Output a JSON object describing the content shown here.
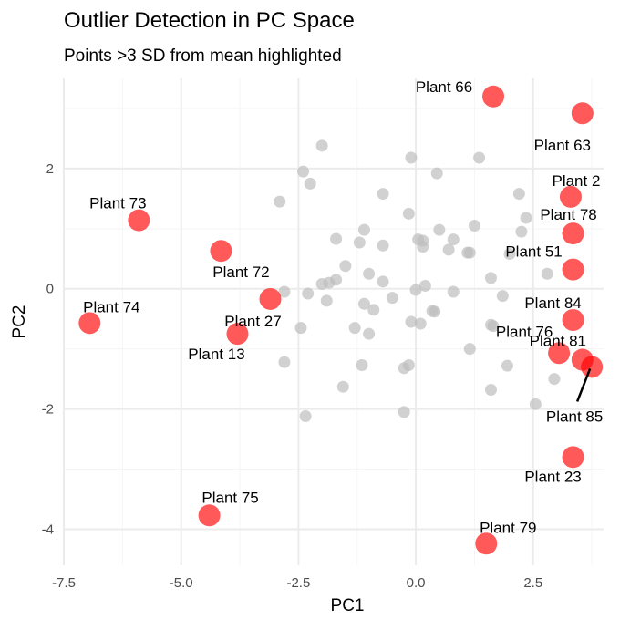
{
  "chart_data": {
    "type": "scatter",
    "title": "Outlier Detection in PC Space",
    "subtitle": "Points >3 SD from mean highlighted",
    "xlabel": "PC1",
    "ylabel": "PC2",
    "xlim": [
      -7.5,
      4.0
    ],
    "ylim": [
      -4.6,
      3.5
    ],
    "x_ticks": [
      -7.5,
      -5.0,
      -2.5,
      0.0,
      2.5
    ],
    "x_tick_labels": [
      "-7.5",
      "-5.0",
      "-2.5",
      "0.0",
      "2.5"
    ],
    "y_ticks": [
      -4,
      -2,
      0,
      2
    ],
    "y_tick_labels": [
      "-4",
      "-2",
      "0",
      "2"
    ],
    "grid": true,
    "legend": "none",
    "colors": {
      "normal": "#bdbdbd",
      "outlier": "#ff0000",
      "major_grid": "#ebebeb",
      "minor_grid": "#f5f5f5"
    },
    "normal_points": [
      [
        -2.0,
        2.38
      ],
      [
        -0.1,
        2.18
      ],
      [
        1.35,
        2.18
      ],
      [
        -2.4,
        1.95
      ],
      [
        0.45,
        1.92
      ],
      [
        -2.25,
        1.75
      ],
      [
        -2.9,
        1.45
      ],
      [
        -0.7,
        1.58
      ],
      [
        2.2,
        1.58
      ],
      [
        -0.15,
        1.25
      ],
      [
        2.35,
        1.18
      ],
      [
        1.25,
        1.05
      ],
      [
        2.25,
        0.95
      ],
      [
        -1.1,
        0.98
      ],
      [
        0.5,
        0.98
      ],
      [
        -1.7,
        0.83
      ],
      [
        0.05,
        0.82
      ],
      [
        0.15,
        0.8
      ],
      [
        -1.2,
        0.77
      ],
      [
        0.8,
        0.82
      ],
      [
        -0.7,
        0.72
      ],
      [
        0.15,
        0.7
      ],
      [
        0.7,
        0.65
      ],
      [
        1.1,
        0.6
      ],
      [
        1.15,
        0.6
      ],
      [
        2.0,
        0.58
      ],
      [
        -1.5,
        0.38
      ],
      [
        -1.0,
        0.25
      ],
      [
        2.8,
        0.25
      ],
      [
        -1.7,
        0.15
      ],
      [
        -1.85,
        0.1
      ],
      [
        -2.0,
        0.08
      ],
      [
        -0.7,
        0.12
      ],
      [
        1.6,
        0.18
      ],
      [
        -2.8,
        -0.05
      ],
      [
        -2.3,
        -0.08
      ],
      [
        0.0,
        -0.02
      ],
      [
        0.8,
        -0.05
      ],
      [
        0.2,
        0.05
      ],
      [
        -1.9,
        -0.2
      ],
      [
        -0.5,
        -0.15
      ],
      [
        1.85,
        -0.12
      ],
      [
        -1.1,
        -0.25
      ],
      [
        -0.9,
        -0.35
      ],
      [
        0.35,
        -0.37
      ],
      [
        0.4,
        -0.38
      ],
      [
        1.6,
        -0.6
      ],
      [
        1.65,
        -0.62
      ],
      [
        -0.1,
        -0.55
      ],
      [
        0.1,
        -0.58
      ],
      [
        -1.3,
        -0.65
      ],
      [
        -2.45,
        -0.65
      ],
      [
        -1.0,
        -0.75
      ],
      [
        1.15,
        -1.0
      ],
      [
        -2.8,
        -1.22
      ],
      [
        -1.15,
        -1.27
      ],
      [
        -0.15,
        -1.27
      ],
      [
        -0.25,
        -1.32
      ],
      [
        1.95,
        -1.28
      ],
      [
        2.95,
        -1.5
      ],
      [
        -1.55,
        -1.63
      ],
      [
        1.6,
        -1.68
      ],
      [
        2.55,
        -1.92
      ],
      [
        -0.25,
        -2.05
      ],
      [
        -2.35,
        -2.12
      ]
    ],
    "outliers": [
      {
        "label": "Plant 66",
        "x": 1.65,
        "y": 3.2
      },
      {
        "label": "Plant 63",
        "x": 3.55,
        "y": 2.92
      },
      {
        "label": "Plant 2",
        "x": 3.3,
        "y": 1.53
      },
      {
        "label": "Plant 73",
        "x": -5.9,
        "y": 1.14
      },
      {
        "label": "Plant 78",
        "x": 3.35,
        "y": 0.92
      },
      {
        "label": "Plant 72",
        "x": -4.15,
        "y": 0.63
      },
      {
        "label": "Plant 51",
        "x": 3.35,
        "y": 0.32
      },
      {
        "label": "Plant 27",
        "x": -3.1,
        "y": -0.17
      },
      {
        "label": "Plant 84",
        "x": 3.35,
        "y": -0.52
      },
      {
        "label": "Plant 74",
        "x": -6.95,
        "y": -0.57
      },
      {
        "label": "Plant 13",
        "x": -3.8,
        "y": -0.75
      },
      {
        "label": "Plant 76",
        "x": 3.05,
        "y": -1.07
      },
      {
        "label": "Plant 81",
        "x": 3.55,
        "y": -1.18
      },
      {
        "label": "Plant 85",
        "x": 3.75,
        "y": -1.3
      },
      {
        "label": "Plant 23",
        "x": 3.35,
        "y": -2.8
      },
      {
        "label": "Plant 75",
        "x": -4.4,
        "y": -3.77
      },
      {
        "label": "Plant 79",
        "x": 1.5,
        "y": -4.24
      }
    ]
  }
}
